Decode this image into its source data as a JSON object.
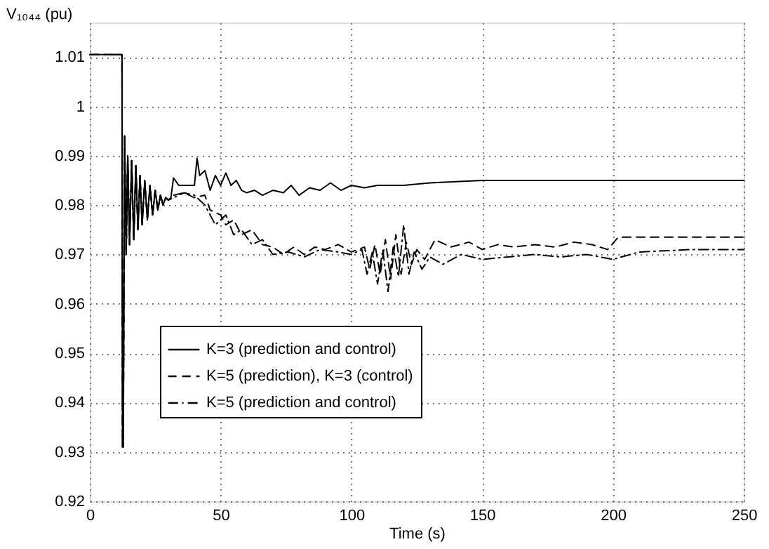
{
  "chart_data": {
    "type": "line",
    "xlabel": "Time (s)",
    "ylabel": "V₁₀₄₄ (pu)",
    "xlim": [
      0,
      250
    ],
    "xticks": [
      0,
      50,
      100,
      150,
      200,
      250
    ],
    "ylim": [
      0.92,
      1.017
    ],
    "yticks": [
      0.92,
      0.93,
      0.94,
      0.95,
      0.96,
      0.97,
      0.98,
      0.99,
      1,
      1.01
    ],
    "grid": true,
    "legend": "bottom left",
    "marker": "none",
    "series": [
      {
        "name": "K=3 (prediction and control)",
        "color": "#000000",
        "line_style": "solid",
        "x": [
          0,
          12.3,
          12.5,
          12.8,
          13.3,
          13.9,
          14.5,
          15.2,
          16,
          16.8,
          17.6,
          18.4,
          19.2,
          20,
          21,
          22,
          23,
          24,
          25,
          26,
          27,
          28,
          29,
          30,
          31,
          32,
          34,
          40,
          41,
          42,
          44,
          46,
          48,
          50,
          52,
          54,
          56,
          58,
          60,
          63,
          66,
          70,
          74,
          77,
          80,
          84,
          88,
          92,
          96,
          100,
          105,
          110,
          120,
          130,
          150,
          250
        ],
        "values": [
          1.0105,
          1.0105,
          0.931,
          0.931,
          0.994,
          0.97,
          0.99,
          0.972,
          0.989,
          0.973,
          0.988,
          0.975,
          0.986,
          0.976,
          0.985,
          0.977,
          0.984,
          0.978,
          0.983,
          0.979,
          0.982,
          0.98,
          0.9815,
          0.981,
          0.9815,
          0.9855,
          0.984,
          0.984,
          0.9895,
          0.986,
          0.987,
          0.983,
          0.986,
          0.984,
          0.9865,
          0.984,
          0.985,
          0.983,
          0.9825,
          0.983,
          0.982,
          0.983,
          0.9825,
          0.984,
          0.982,
          0.9835,
          0.983,
          0.9845,
          0.983,
          0.984,
          0.9835,
          0.984,
          0.984,
          0.9845,
          0.985,
          0.985
        ]
      },
      {
        "name": "K=5 (prediction), K=3 (control)",
        "color": "#000000",
        "line_style": "dashed",
        "x": [
          0,
          12.3,
          12.5,
          12.8,
          13.3,
          13.9,
          14.5,
          15.2,
          16,
          16.8,
          17.6,
          18.4,
          19.2,
          20,
          21,
          22,
          23,
          24,
          25,
          26,
          27,
          28,
          29,
          30,
          32,
          36,
          40,
          44,
          46,
          50,
          52,
          55,
          58,
          62,
          66,
          70,
          74,
          78,
          82,
          86,
          90,
          95,
          100,
          105,
          107,
          109,
          111,
          113,
          115,
          117,
          119,
          121,
          123,
          125,
          128,
          132,
          138,
          145,
          150,
          156,
          162,
          170,
          178,
          185,
          192,
          198,
          202,
          250
        ],
        "values": [
          1.0105,
          1.0105,
          0.931,
          0.931,
          0.994,
          0.97,
          0.99,
          0.972,
          0.989,
          0.973,
          0.988,
          0.975,
          0.986,
          0.976,
          0.985,
          0.977,
          0.984,
          0.978,
          0.983,
          0.979,
          0.982,
          0.98,
          0.9815,
          0.981,
          0.982,
          0.9825,
          0.9815,
          0.982,
          0.979,
          0.978,
          0.976,
          0.977,
          0.974,
          0.975,
          0.972,
          0.9715,
          0.97,
          0.9715,
          0.97,
          0.9715,
          0.971,
          0.972,
          0.9705,
          0.9715,
          0.967,
          0.972,
          0.966,
          0.973,
          0.965,
          0.974,
          0.966,
          0.9725,
          0.968,
          0.971,
          0.969,
          0.973,
          0.9715,
          0.9725,
          0.971,
          0.972,
          0.9715,
          0.972,
          0.9715,
          0.9725,
          0.972,
          0.971,
          0.9735,
          0.9735
        ]
      },
      {
        "name": "K=5 (prediction and control)",
        "color": "#000000",
        "line_style": "dashdot",
        "x": [
          0,
          12.3,
          12.5,
          12.8,
          13.3,
          13.9,
          14.5,
          15.2,
          16,
          16.8,
          17.6,
          18.4,
          19.2,
          20,
          21,
          22,
          23,
          24,
          25,
          26,
          27,
          28,
          29,
          30,
          32,
          36,
          40,
          44,
          48,
          52,
          55,
          58,
          62,
          66,
          70,
          76,
          82,
          88,
          95,
          100,
          104,
          106,
          108,
          110,
          112,
          114,
          116,
          118,
          120,
          122,
          124,
          127,
          130,
          135,
          142,
          150,
          160,
          170,
          180,
          190,
          200,
          210,
          230,
          250
        ],
        "values": [
          1.0105,
          1.0105,
          0.931,
          0.931,
          0.994,
          0.97,
          0.99,
          0.972,
          0.989,
          0.973,
          0.988,
          0.975,
          0.986,
          0.976,
          0.985,
          0.977,
          0.984,
          0.978,
          0.983,
          0.979,
          0.982,
          0.98,
          0.9815,
          0.981,
          0.9815,
          0.9825,
          0.982,
          0.98,
          0.976,
          0.978,
          0.974,
          0.975,
          0.972,
          0.973,
          0.97,
          0.9705,
          0.9695,
          0.971,
          0.9705,
          0.97,
          0.971,
          0.966,
          0.9705,
          0.964,
          0.971,
          0.9625,
          0.9715,
          0.9655,
          0.976,
          0.966,
          0.9705,
          0.967,
          0.9695,
          0.968,
          0.97,
          0.969,
          0.9695,
          0.97,
          0.9695,
          0.97,
          0.969,
          0.9705,
          0.971,
          0.971
        ]
      }
    ]
  }
}
